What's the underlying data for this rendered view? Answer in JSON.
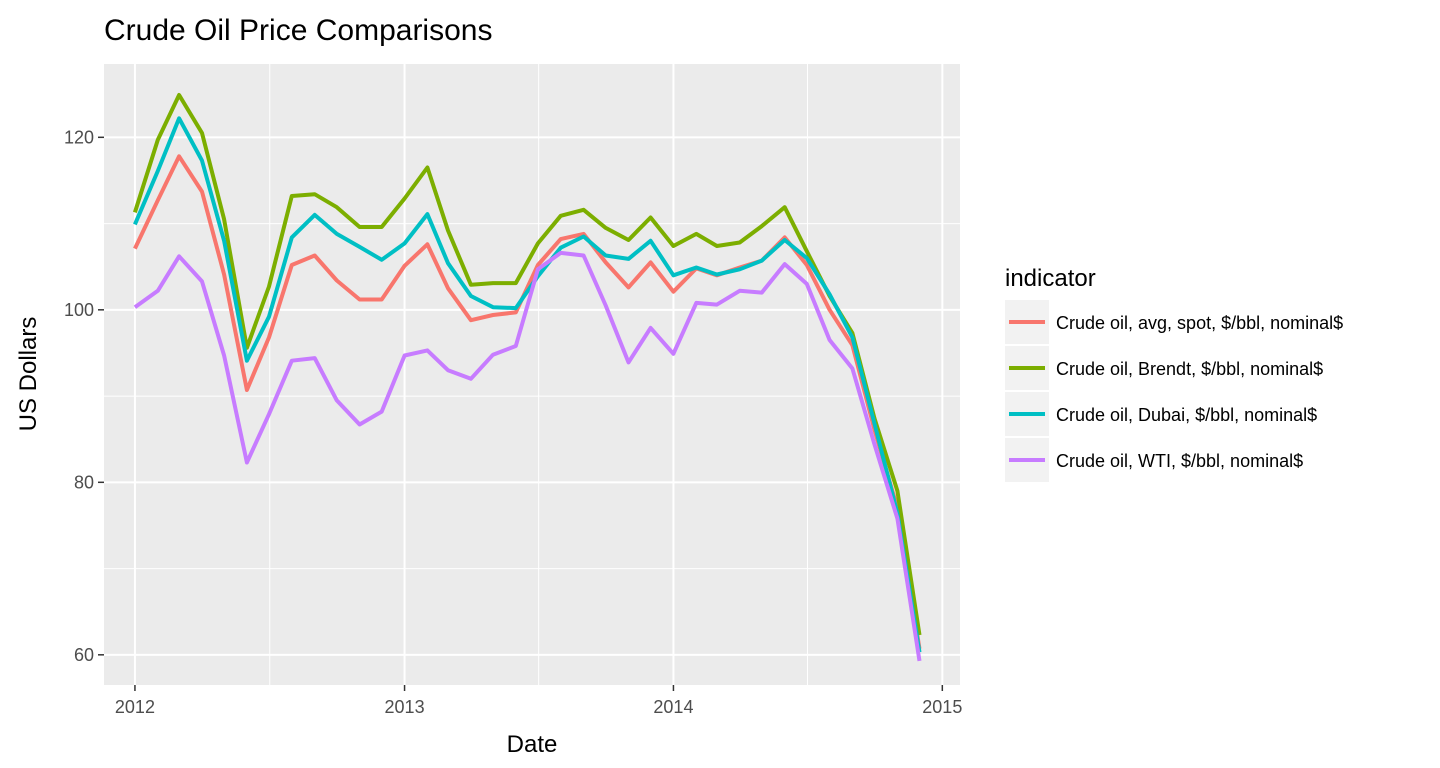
{
  "chart_data": {
    "type": "line",
    "title": "Crude Oil Price Comparisons",
    "xlabel": "Date",
    "ylabel": "US Dollars",
    "xlim": [
      "2011-11-20",
      "2015-01-25"
    ],
    "ylim": [
      56.5,
      128.5
    ],
    "x_ticks": [
      "2012",
      "2013",
      "2014",
      "2015"
    ],
    "y_ticks": [
      60,
      80,
      100,
      120
    ],
    "grid": true,
    "legend": {
      "title": "indicator",
      "position": "right"
    },
    "x": [
      "2012-01-01",
      "2012-02-01",
      "2012-03-01",
      "2012-04-01",
      "2012-05-01",
      "2012-06-01",
      "2012-07-01",
      "2012-08-01",
      "2012-09-01",
      "2012-10-01",
      "2012-11-01",
      "2012-12-01",
      "2013-01-01",
      "2013-02-01",
      "2013-03-01",
      "2013-04-01",
      "2013-05-01",
      "2013-06-01",
      "2013-07-01",
      "2013-08-01",
      "2013-09-01",
      "2013-10-01",
      "2013-11-01",
      "2013-12-01",
      "2014-01-01",
      "2014-02-01",
      "2014-03-01",
      "2014-04-01",
      "2014-05-01",
      "2014-06-01",
      "2014-07-01",
      "2014-08-01",
      "2014-09-01",
      "2014-10-01",
      "2014-11-01",
      "2014-12-01"
    ],
    "series": [
      {
        "name": "Crude oil, avg, spot, $/bbl, nominal$",
        "color": "#f8766d",
        "values": [
          107.1,
          112.7,
          117.8,
          113.7,
          104.1,
          90.7,
          96.8,
          105.2,
          106.3,
          103.4,
          101.2,
          101.2,
          105.1,
          107.6,
          102.5,
          98.8,
          99.4,
          99.7,
          105.2,
          108.2,
          108.8,
          105.5,
          102.6,
          105.5,
          102.1,
          104.8,
          104.0,
          104.9,
          105.7,
          108.4,
          105.2,
          100.0,
          95.9,
          86.1,
          77.0,
          60.7
        ]
      },
      {
        "name": "Crude oil, Brendt, $/bbl, nominal$",
        "color": "#7cae00",
        "values": [
          111.3,
          119.7,
          124.9,
          120.5,
          110.5,
          95.6,
          102.7,
          113.2,
          113.4,
          111.9,
          109.6,
          109.6,
          112.9,
          116.5,
          109.2,
          102.9,
          103.1,
          103.1,
          107.7,
          110.9,
          111.6,
          109.5,
          108.1,
          110.7,
          107.4,
          108.8,
          107.4,
          107.8,
          109.7,
          111.9,
          106.8,
          101.6,
          97.3,
          87.4,
          79.0,
          62.3
        ]
      },
      {
        "name": "Crude oil, Dubai, $/bbl, nominal$",
        "color": "#00bfc4",
        "values": [
          109.9,
          116.1,
          122.2,
          117.3,
          108.0,
          94.1,
          99.2,
          108.4,
          111.0,
          108.8,
          107.3,
          105.8,
          107.7,
          111.1,
          105.4,
          101.6,
          100.3,
          100.2,
          103.9,
          107.2,
          108.5,
          106.3,
          105.9,
          108.0,
          104.0,
          104.9,
          104.1,
          104.7,
          105.7,
          108.1,
          106.0,
          101.8,
          96.8,
          86.8,
          76.4,
          60.3
        ]
      },
      {
        "name": "Crude oil, WTI, $/bbl, nominal$",
        "color": "#c77cff",
        "values": [
          100.3,
          102.2,
          106.2,
          103.3,
          94.7,
          82.3,
          87.9,
          94.1,
          94.4,
          89.5,
          86.7,
          88.2,
          94.7,
          95.3,
          93.0,
          92.0,
          94.8,
          95.8,
          104.7,
          106.6,
          106.3,
          100.5,
          93.9,
          97.9,
          94.9,
          100.8,
          100.6,
          102.2,
          102.0,
          105.3,
          103.0,
          96.5,
          93.2,
          84.4,
          75.8,
          59.3
        ]
      }
    ]
  }
}
